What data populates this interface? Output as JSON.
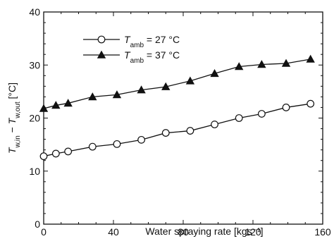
{
  "chart_data": {
    "type": "line",
    "xlabel": "Water spraying rate [kgs⁻¹]",
    "ylabel": {
      "parts": [
        {
          "t": "T",
          "style": "italic"
        },
        {
          "t": "w,in",
          "style": "sub"
        },
        {
          "t": " − ",
          "style": "normal"
        },
        {
          "t": "T",
          "style": "italic"
        },
        {
          "t": "w,out",
          "style": "sub"
        },
        {
          "t": " [°C]",
          "style": "normal"
        }
      ]
    },
    "xlim": [
      0,
      160
    ],
    "ylim": [
      0,
      40
    ],
    "xticks": [
      0,
      40,
      80,
      120,
      160
    ],
    "yticks": [
      0,
      10,
      20,
      30,
      40
    ],
    "grid": false,
    "legend_position": "top-left",
    "series": [
      {
        "name_parts": [
          {
            "t": "T",
            "style": "italic"
          },
          {
            "t": "amb",
            "style": "sub"
          },
          {
            "t": " = 27 °C",
            "style": "normal"
          }
        ],
        "marker": "open-circle",
        "color": "#111111",
        "x": [
          0,
          7,
          14,
          28,
          42,
          56,
          70,
          84,
          98,
          112,
          125,
          139,
          153
        ],
        "y": [
          12.8,
          13.3,
          13.7,
          14.6,
          15.1,
          15.9,
          17.2,
          17.6,
          18.8,
          20.0,
          20.8,
          22.0,
          22.7
        ]
      },
      {
        "name_parts": [
          {
            "t": "T",
            "style": "italic"
          },
          {
            "t": "amb",
            "style": "sub"
          },
          {
            "t": " = 37 °C",
            "style": "normal"
          }
        ],
        "marker": "filled-triangle",
        "color": "#111111",
        "x": [
          0,
          7,
          14,
          28,
          42,
          56,
          70,
          84,
          98,
          112,
          125,
          139,
          153
        ],
        "y": [
          21.8,
          22.4,
          22.8,
          24.0,
          24.4,
          25.3,
          25.9,
          27.0,
          28.4,
          29.7,
          30.1,
          30.3,
          31.1
        ]
      }
    ]
  }
}
